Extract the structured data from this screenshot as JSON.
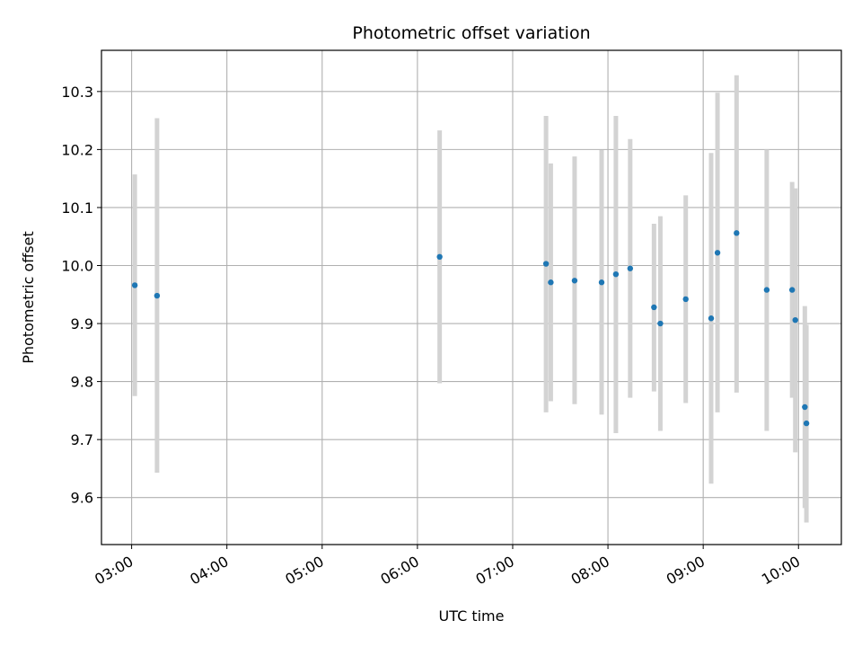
{
  "chart_data": {
    "type": "scatter",
    "title": "Photometric offset variation",
    "xlabel": "UTC time",
    "ylabel": "Photometric offset",
    "x_ticks": [
      "03:00",
      "04:00",
      "05:00",
      "06:00",
      "07:00",
      "08:00",
      "09:00",
      "10:00"
    ],
    "y_ticks": [
      "9.6",
      "9.7",
      "9.8",
      "9.9",
      "10.0",
      "10.1",
      "10.2",
      "10.3"
    ],
    "xlim": [
      "02:41",
      "10:27"
    ],
    "ylim": [
      9.519,
      10.371
    ],
    "grid": true,
    "colors": {
      "marker": "#1f77b4",
      "errorbar": "#d3d3d3",
      "grid": "#b0b0b0"
    },
    "points": [
      {
        "x": "03:02",
        "y": 9.966,
        "ymin": 9.775,
        "ymax": 10.157
      },
      {
        "x": "03:16",
        "y": 9.948,
        "ymin": 9.643,
        "ymax": 10.254
      },
      {
        "x": "06:14",
        "y": 10.015,
        "ymin": 9.797,
        "ymax": 10.233
      },
      {
        "x": "07:21",
        "y": 10.003,
        "ymin": 9.747,
        "ymax": 10.258
      },
      {
        "x": "07:24",
        "y": 9.971,
        "ymin": 9.766,
        "ymax": 10.176
      },
      {
        "x": "07:39",
        "y": 9.974,
        "ymin": 9.761,
        "ymax": 10.188
      },
      {
        "x": "07:56",
        "y": 9.971,
        "ymin": 9.743,
        "ymax": 10.199
      },
      {
        "x": "08:05",
        "y": 9.985,
        "ymin": 9.711,
        "ymax": 10.258
      },
      {
        "x": "08:14",
        "y": 9.995,
        "ymin": 9.772,
        "ymax": 10.218
      },
      {
        "x": "08:29",
        "y": 9.928,
        "ymin": 9.783,
        "ymax": 10.072
      },
      {
        "x": "08:33",
        "y": 9.9,
        "ymin": 9.715,
        "ymax": 10.085
      },
      {
        "x": "08:49",
        "y": 9.942,
        "ymin": 9.763,
        "ymax": 10.121
      },
      {
        "x": "09:05",
        "y": 9.909,
        "ymin": 9.624,
        "ymax": 10.194
      },
      {
        "x": "09:09",
        "y": 10.022,
        "ymin": 9.747,
        "ymax": 10.298
      },
      {
        "x": "09:21",
        "y": 10.056,
        "ymin": 9.781,
        "ymax": 10.328
      },
      {
        "x": "09:40",
        "y": 9.958,
        "ymin": 9.715,
        "ymax": 10.2
      },
      {
        "x": "09:56",
        "y": 9.958,
        "ymin": 9.772,
        "ymax": 10.144
      },
      {
        "x": "09:58",
        "y": 9.906,
        "ymin": 9.678,
        "ymax": 10.133
      },
      {
        "x": "10:04",
        "y": 9.756,
        "ymin": 9.582,
        "ymax": 9.93
      },
      {
        "x": "10:05",
        "y": 9.728,
        "ymin": 9.557,
        "ymax": 9.898
      }
    ]
  }
}
